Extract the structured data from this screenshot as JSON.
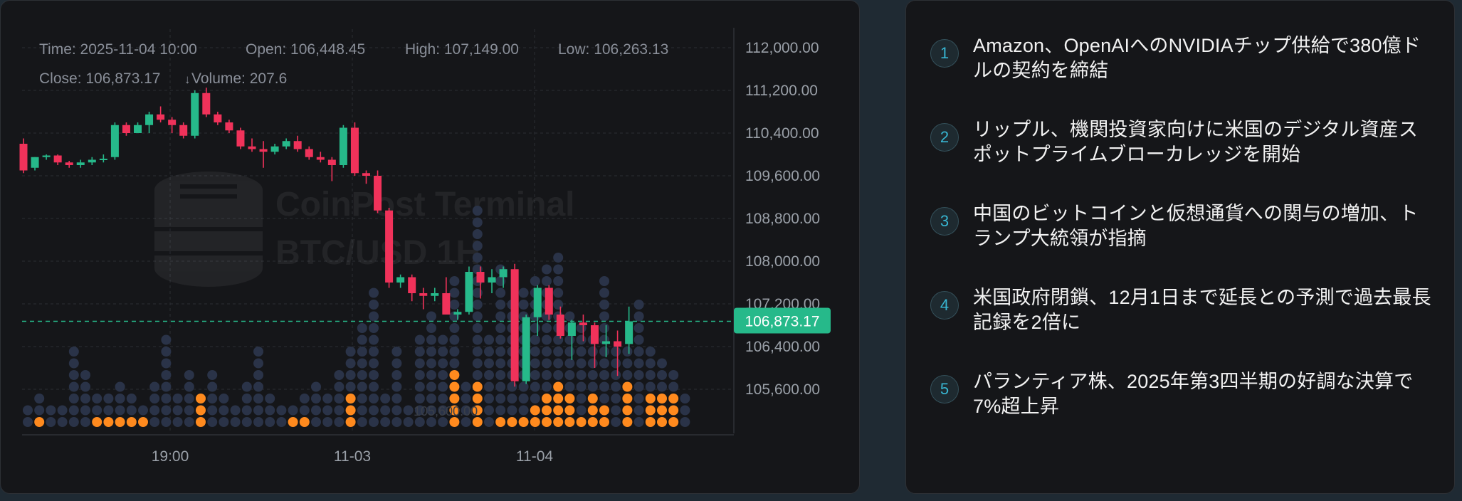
{
  "colors": {
    "up": "#26b98a",
    "down": "#f0325a",
    "dot_dark": "#2a3348",
    "dot_orange": "#ff8a1e",
    "price_tag": "#26b98a",
    "text_dim": "#8a8f99"
  },
  "info": {
    "time": "Time: 2025-11-04 10:00",
    "open": "Open: 106,448.45",
    "high": "High: 107,149.00",
    "low": "Low: 106,263.13",
    "close": "Close: 106,873.17",
    "volume": "Volume: 207.6"
  },
  "watermark": {
    "line1": "CoinPost Terminal",
    "line2": "BTC/USD 1H"
  },
  "current_price_label": "106,873.17",
  "volume_marker_label": "105,600.00",
  "chart_data": {
    "type": "candlestick",
    "y_ticks": [
      "112,000.00",
      "111,200.00",
      "110,400.00",
      "109,600.00",
      "108,800.00",
      "108,000.00",
      "107,200.00",
      "106,400.00",
      "105,600.00"
    ],
    "x_ticks": [
      "19:00",
      "11-03",
      "11-04"
    ],
    "current_price": 106873.17,
    "ylim": [
      104900,
      112400
    ],
    "candles": [
      [
        110200,
        110300,
        109650,
        109700
      ],
      [
        109750,
        109950,
        109700,
        109950
      ],
      [
        109950,
        110000,
        109900,
        109980
      ],
      [
        109980,
        110000,
        109800,
        109850
      ],
      [
        109850,
        109880,
        109750,
        109800
      ],
      [
        109800,
        109900,
        109750,
        109850
      ],
      [
        109850,
        109950,
        109800,
        109900
      ],
      [
        109900,
        110000,
        109850,
        109920
      ],
      [
        109950,
        110600,
        109900,
        110550
      ],
      [
        110550,
        110600,
        110350,
        110400
      ],
      [
        110400,
        110600,
        110400,
        110550
      ],
      [
        110550,
        110800,
        110400,
        110750
      ],
      [
        110750,
        110900,
        110600,
        110650
      ],
      [
        110650,
        110700,
        110400,
        110550
      ],
      [
        110550,
        110600,
        110300,
        110350
      ],
      [
        110350,
        111200,
        110300,
        111150
      ],
      [
        111150,
        111250,
        110700,
        110750
      ],
      [
        110750,
        110800,
        110550,
        110600
      ],
      [
        110600,
        110650,
        110400,
        110450
      ],
      [
        110450,
        110500,
        110100,
        110150
      ],
      [
        110150,
        110300,
        110050,
        110100
      ],
      [
        110100,
        110250,
        109750,
        110050
      ],
      [
        110050,
        110200,
        110000,
        110150
      ],
      [
        110150,
        110300,
        110100,
        110250
      ],
      [
        110250,
        110350,
        110050,
        110100
      ],
      [
        110100,
        110150,
        109900,
        109950
      ],
      [
        109950,
        110050,
        109850,
        109900
      ],
      [
        109900,
        109950,
        109500,
        109800
      ],
      [
        109800,
        110550,
        109750,
        110500
      ],
      [
        110500,
        110600,
        109600,
        109650
      ],
      [
        109650,
        109700,
        109450,
        109600
      ],
      [
        109600,
        109700,
        108900,
        108950
      ],
      [
        108950,
        109000,
        107500,
        107600
      ],
      [
        107600,
        107750,
        107500,
        107700
      ],
      [
        107700,
        107750,
        107250,
        107400
      ],
      [
        107400,
        107500,
        107100,
        107350
      ],
      [
        107350,
        107500,
        107250,
        107400
      ],
      [
        107400,
        107700,
        107050,
        107000
      ],
      [
        107000,
        107100,
        106900,
        107050
      ],
      [
        107050,
        107900,
        107000,
        107800
      ],
      [
        107800,
        107900,
        107300,
        107600
      ],
      [
        107600,
        107850,
        107400,
        107700
      ],
      [
        107700,
        107900,
        107500,
        107850
      ],
      [
        107850,
        107950,
        105650,
        105750
      ],
      [
        105750,
        107000,
        105700,
        106950
      ],
      [
        106950,
        107550,
        106600,
        107500
      ],
      [
        107500,
        107550,
        106900,
        107000
      ],
      [
        107000,
        107150,
        106550,
        106600
      ],
      [
        106600,
        106900,
        106150,
        106850
      ],
      [
        106850,
        107000,
        106500,
        106800
      ],
      [
        106800,
        106850,
        106000,
        106450
      ],
      [
        106450,
        106800,
        106200,
        106500
      ],
      [
        106500,
        106700,
        105850,
        106400
      ],
      [
        106448.45,
        107149,
        106263.13,
        106873.17
      ]
    ],
    "volume_profile": [
      [
        2,
        0
      ],
      [
        3,
        1
      ],
      [
        2,
        0
      ],
      [
        2,
        0
      ],
      [
        7,
        0
      ],
      [
        5,
        0
      ],
      [
        3,
        1
      ],
      [
        3,
        1
      ],
      [
        4,
        1
      ],
      [
        3,
        1
      ],
      [
        2,
        1
      ],
      [
        4,
        0
      ],
      [
        8,
        0
      ],
      [
        3,
        0
      ],
      [
        5,
        0
      ],
      [
        3,
        3
      ],
      [
        5,
        0
      ],
      [
        3,
        0
      ],
      [
        2,
        0
      ],
      [
        4,
        0
      ],
      [
        7,
        0
      ],
      [
        3,
        0
      ],
      [
        2,
        0
      ],
      [
        2,
        1
      ],
      [
        3,
        1
      ],
      [
        4,
        0
      ],
      [
        3,
        0
      ],
      [
        5,
        0
      ],
      [
        7,
        3
      ],
      [
        9,
        0
      ],
      [
        12,
        0
      ],
      [
        3,
        0
      ],
      [
        7,
        0
      ],
      [
        2,
        0
      ],
      [
        8,
        0
      ],
      [
        10,
        0
      ],
      [
        8,
        0
      ],
      [
        13,
        5
      ],
      [
        4,
        0
      ],
      [
        19,
        4
      ],
      [
        8,
        0
      ],
      [
        14,
        1
      ],
      [
        11,
        1
      ],
      [
        12,
        1
      ],
      [
        13,
        2
      ],
      [
        14,
        3
      ],
      [
        15,
        4
      ],
      [
        10,
        3
      ],
      [
        9,
        1
      ],
      [
        8,
        3
      ],
      [
        13,
        2
      ],
      [
        7,
        0
      ],
      [
        7,
        4
      ],
      [
        11,
        0
      ],
      [
        7,
        3
      ],
      [
        6,
        3
      ],
      [
        5,
        3
      ],
      [
        3,
        0
      ]
    ]
  },
  "news": [
    {
      "num": "1",
      "text": "Amazon、OpenAIへのNVIDIAチップ供給で380億ドルの契約を締結"
    },
    {
      "num": "2",
      "text": "リップル、機関投資家向けに米国のデジタル資産スポットプライムブローカレッジを開始"
    },
    {
      "num": "3",
      "text": "中国のビットコインと仮想通貨への関与の増加、トランプ大統領が指摘"
    },
    {
      "num": "4",
      "text": "米国政府閉鎖、12月1日まで延長との予測で過去最長記録を2倍に"
    },
    {
      "num": "5",
      "text": "パランティア株、2025年第3四半期の好調な決算で7%超上昇"
    }
  ]
}
